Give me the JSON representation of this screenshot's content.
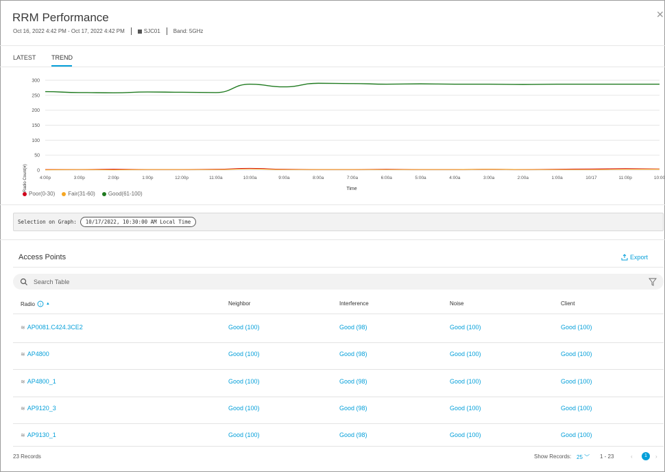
{
  "header": {
    "title": "RRM Performance",
    "date_range": "Oct 16, 2022 4:42 PM - Oct 17, 2022 4:42 PM",
    "site": "SJC01",
    "band": "Band: 5GHz",
    "close_icon": "close-icon"
  },
  "tabs": [
    {
      "label": "LATEST",
      "active": false
    },
    {
      "label": "TREND",
      "active": true
    }
  ],
  "chart_data": {
    "type": "line",
    "xlabel": "Time",
    "ylabel": "Radio Count(#)",
    "ylim": [
      0,
      300
    ],
    "yticks": [
      0,
      50,
      100,
      150,
      200,
      250,
      300
    ],
    "x": [
      "4:00p",
      "3:00p",
      "2:00p",
      "1:00p",
      "12:00p",
      "11:00a",
      "10:00a",
      "9:00a",
      "8:00a",
      "7:00a",
      "6:00a",
      "5:00a",
      "4:00a",
      "3:00a",
      "2:00a",
      "1:00a",
      "10/17",
      "11:00p",
      "10:00"
    ],
    "series": [
      {
        "name": "Poor(0-30)",
        "color": "#d0021b",
        "values": [
          2,
          2,
          3,
          2,
          2,
          3,
          6,
          3,
          2,
          2,
          3,
          2,
          2,
          3,
          2,
          3,
          4,
          5,
          4
        ]
      },
      {
        "name": "Fair(31-60)",
        "color": "#f5a623",
        "values": [
          1,
          2,
          1,
          2,
          2,
          2,
          4,
          2,
          2,
          2,
          2,
          2,
          2,
          3,
          2,
          2,
          2,
          3,
          3
        ]
      },
      {
        "name": "Good(61-100)",
        "color": "#1f7a1f",
        "values": [
          262,
          259,
          258,
          261,
          260,
          259,
          287,
          278,
          290,
          289,
          287,
          288,
          287,
          287,
          286,
          287,
          287,
          287,
          287
        ]
      }
    ]
  },
  "selection": {
    "label": "Selection on Graph:",
    "value": "10/17/2022, 10:30:00 AM Local Time"
  },
  "access_points": {
    "title": "Access Points",
    "export_label": "Export",
    "search_placeholder": "Search Table",
    "columns": [
      "Radio",
      "Neighbor",
      "Interference",
      "Noise",
      "Client"
    ],
    "rows": [
      {
        "radio": "AP0081.C424.3CE2",
        "neighbor": "Good (100)",
        "interference": "Good (98)",
        "noise": "Good (100)",
        "client": "Good (100)"
      },
      {
        "radio": "AP4800",
        "neighbor": "Good (100)",
        "interference": "Good (98)",
        "noise": "Good (100)",
        "client": "Good (100)"
      },
      {
        "radio": "AP4800_1",
        "neighbor": "Good (100)",
        "interference": "Good (98)",
        "noise": "Good (100)",
        "client": "Good (100)"
      },
      {
        "radio": "AP9120_3",
        "neighbor": "Good (100)",
        "interference": "Good (98)",
        "noise": "Good (100)",
        "client": "Good (100)"
      },
      {
        "radio": "AP9130_1",
        "neighbor": "Good (100)",
        "interference": "Good (98)",
        "noise": "Good (100)",
        "client": "Good (100)"
      }
    ]
  },
  "footer": {
    "records": "23 Records",
    "show_records_label": "Show Records:",
    "show_records_value": "25",
    "range": "1 - 23",
    "current_page": "1"
  },
  "colors": {
    "accent": "#049fd9"
  }
}
